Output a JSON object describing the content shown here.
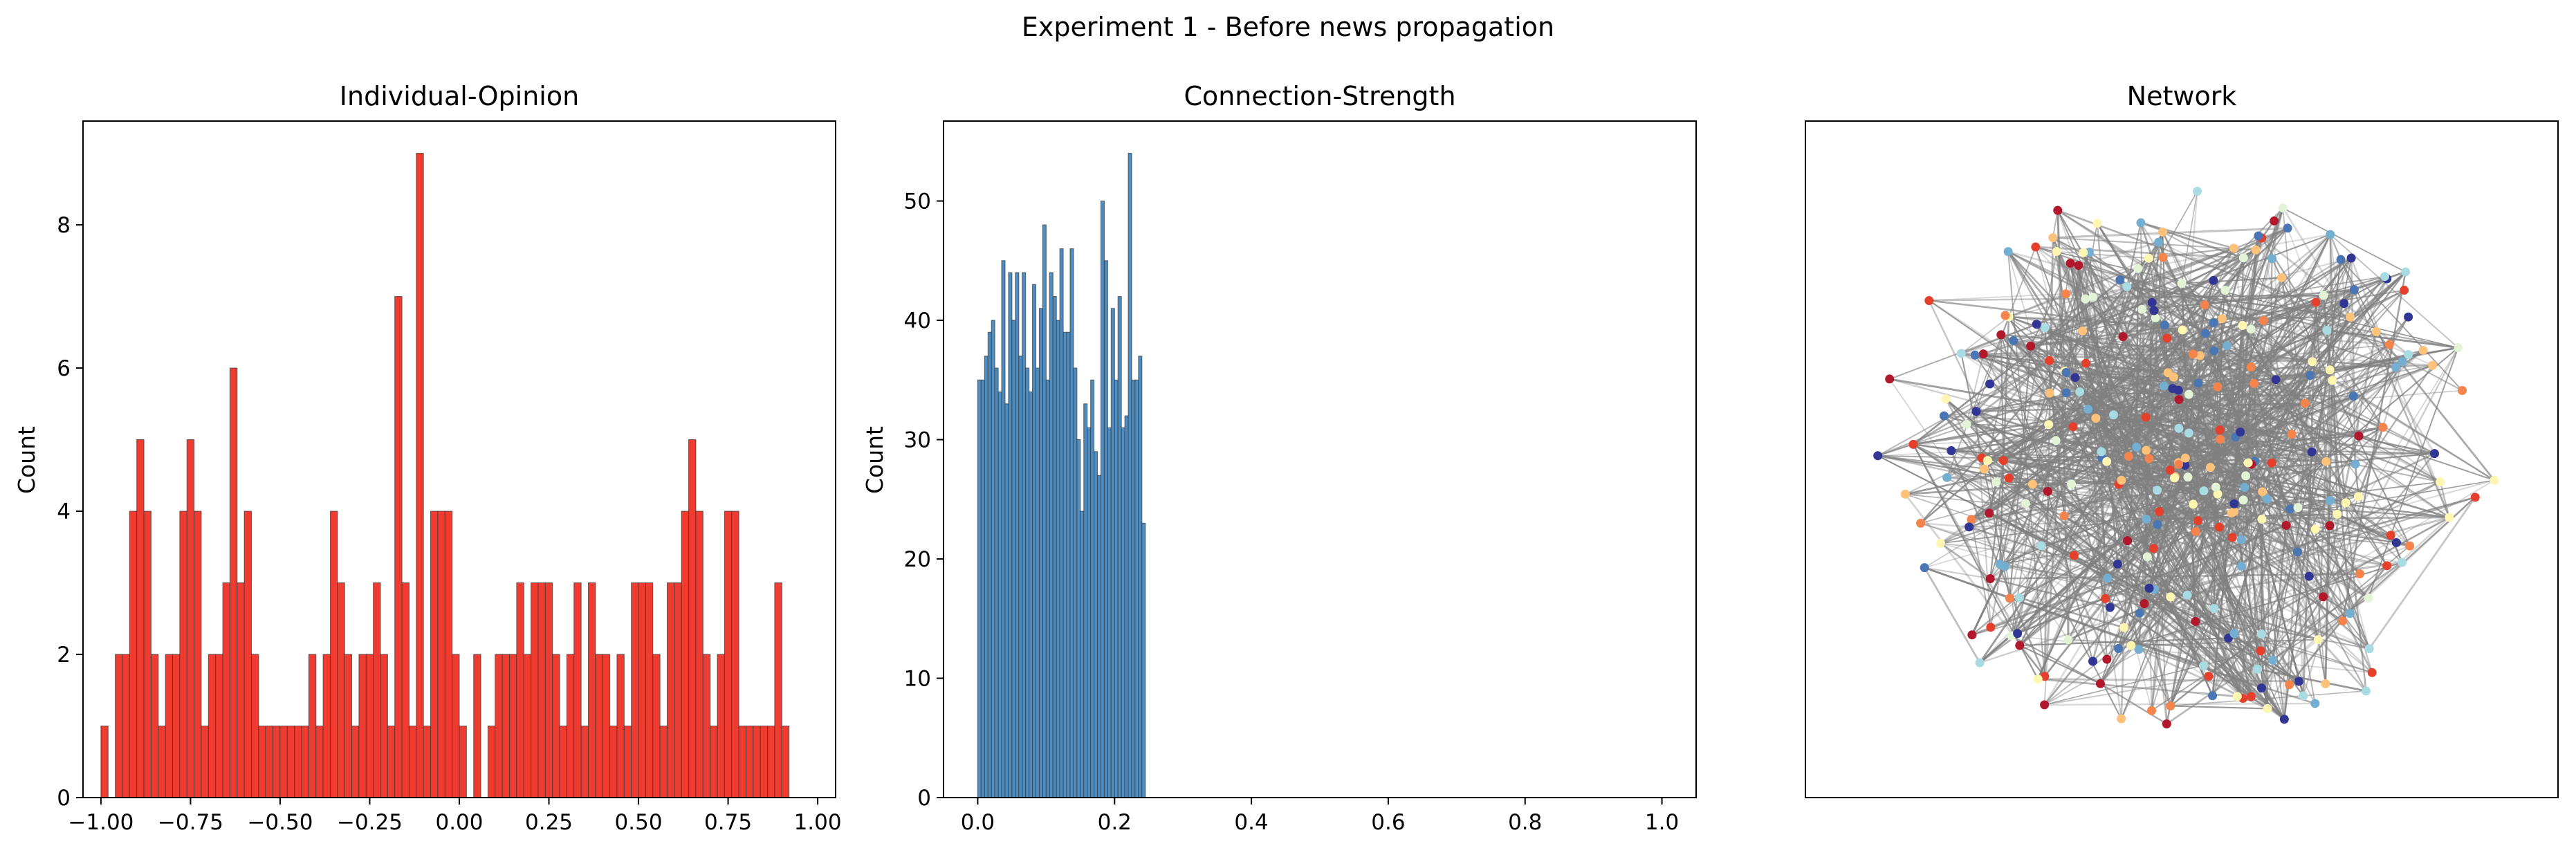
{
  "figure": {
    "suptitle": "Experiment 1 - Before news propagation"
  },
  "colors": {
    "opinion_bar": "#f03b30",
    "strength_bar": "#4c8dc4",
    "edge": "#808080",
    "node_palette": [
      "#b2182b",
      "#e4402c",
      "#f4834c",
      "#fdc27a",
      "#fff6b2",
      "#e3f4d6",
      "#a8dbe2",
      "#74aed1",
      "#4a76b4",
      "#313695"
    ]
  },
  "chart_data": [
    {
      "type": "bar",
      "title": "Individual-Opinion",
      "xlabel": "",
      "ylabel": "Count",
      "xlim": [
        -1.05,
        1.05
      ],
      "ylim": [
        0,
        9.45
      ],
      "xticks": [
        -1.0,
        -0.75,
        -0.5,
        -0.25,
        0.0,
        0.25,
        0.5,
        0.75,
        1.0
      ],
      "xtick_labels": [
        "−1.00",
        "−0.75",
        "−0.50",
        "−0.25",
        "0.00",
        "0.25",
        "0.50",
        "0.75",
        "1.00"
      ],
      "yticks": [
        0,
        2,
        4,
        6,
        8
      ],
      "ytick_labels": [
        "0",
        "2",
        "4",
        "6",
        "8"
      ],
      "bin_start": -1.0,
      "bin_width": 0.02,
      "values": [
        1,
        0,
        2,
        2,
        4,
        5,
        4,
        2,
        1,
        2,
        2,
        4,
        5,
        4,
        1,
        2,
        2,
        3,
        6,
        3,
        4,
        2,
        1,
        1,
        1,
        1,
        1,
        1,
        1,
        2,
        1,
        2,
        4,
        3,
        2,
        1,
        2,
        2,
        3,
        2,
        1,
        7,
        3,
        1,
        9,
        1,
        4,
        4,
        4,
        2,
        1,
        0,
        2,
        0,
        1,
        2,
        2,
        2,
        3,
        2,
        3,
        3,
        3,
        2,
        1,
        2,
        3,
        1,
        3,
        2,
        2,
        1,
        2,
        1,
        3,
        3,
        3,
        2,
        1,
        3,
        3,
        4,
        5,
        4,
        2,
        1,
        2,
        4,
        4,
        1,
        1,
        1,
        1,
        1,
        3,
        1,
        0,
        0,
        0,
        0
      ]
    },
    {
      "type": "bar",
      "title": "Connection-Strength",
      "xlabel": "",
      "ylabel": "Count",
      "xlim": [
        -0.05,
        1.05
      ],
      "ylim": [
        0,
        56.7
      ],
      "xticks": [
        0.0,
        0.2,
        0.4,
        0.6,
        0.8,
        1.0
      ],
      "xtick_labels": [
        "0.0",
        "0.2",
        "0.4",
        "0.6",
        "0.8",
        "1.0"
      ],
      "yticks": [
        0,
        10,
        20,
        30,
        40,
        50
      ],
      "ytick_labels": [
        "0",
        "10",
        "20",
        "30",
        "40",
        "50"
      ],
      "bin_start": 0.0,
      "bin_width": 0.005,
      "values": [
        35,
        35,
        37,
        39,
        40,
        36,
        34,
        45,
        33,
        44,
        40,
        44,
        37,
        44,
        36,
        34,
        43,
        36,
        41,
        48,
        35,
        44,
        42,
        40,
        46,
        39,
        39,
        46,
        36,
        30,
        24,
        33,
        31,
        35,
        29,
        27,
        50,
        45,
        31,
        41,
        35,
        42,
        31,
        32,
        54,
        35,
        35,
        37,
        23
      ]
    },
    {
      "type": "network",
      "title": "Network",
      "node_count": 300
    }
  ]
}
